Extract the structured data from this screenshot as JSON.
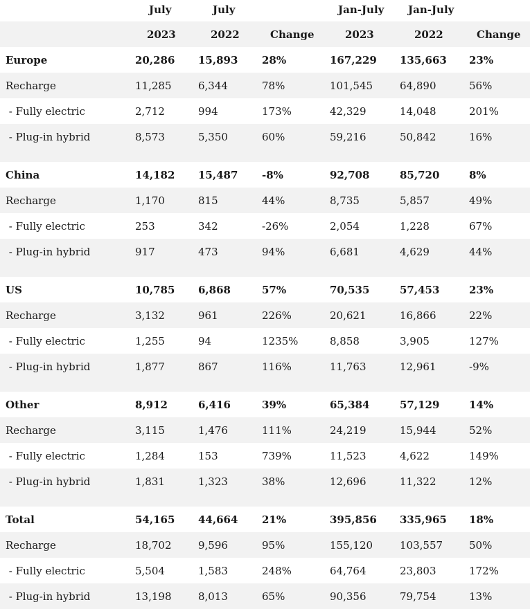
{
  "header": {
    "row1": [
      "July",
      "July",
      "",
      "Jan-July",
      "Jan-July",
      ""
    ],
    "row2": [
      "2023",
      "2022",
      "Change",
      "2023",
      "2022",
      "Change"
    ]
  },
  "sections": [
    {
      "region": [
        "Europe",
        "20,286",
        "15,893",
        "28%",
        "167,229",
        "135,663",
        "23%"
      ],
      "rows": [
        [
          "Recharge",
          "11,285",
          "6,344",
          "78%",
          "101,545",
          "64,890",
          "56%"
        ],
        [
          " - Fully electric",
          "2,712",
          "994",
          "173%",
          "42,329",
          "14,048",
          "201%"
        ],
        [
          " - Plug-in hybrid",
          "8,573",
          "5,350",
          "60%",
          "59,216",
          "50,842",
          "16%"
        ]
      ]
    },
    {
      "region": [
        "China",
        "14,182",
        "15,487",
        "-8%",
        "92,708",
        "85,720",
        "8%"
      ],
      "rows": [
        [
          "Recharge",
          "1,170",
          "815",
          "44%",
          "8,735",
          "5,857",
          "49%"
        ],
        [
          " - Fully electric",
          "253",
          "342",
          "-26%",
          "2,054",
          "1,228",
          "67%"
        ],
        [
          " - Plug-in hybrid",
          "917",
          "473",
          "94%",
          "6,681",
          "4,629",
          "44%"
        ]
      ]
    },
    {
      "region": [
        "US",
        "10,785",
        "6,868",
        "57%",
        "70,535",
        "57,453",
        "23%"
      ],
      "rows": [
        [
          "Recharge",
          "3,132",
          "961",
          "226%",
          "20,621",
          "16,866",
          "22%"
        ],
        [
          " - Fully electric",
          "1,255",
          "94",
          "1235%",
          "8,858",
          "3,905",
          "127%"
        ],
        [
          " - Plug-in hybrid",
          "1,877",
          "867",
          "116%",
          "11,763",
          "12,961",
          "-9%"
        ]
      ]
    },
    {
      "region": [
        "Other",
        "8,912",
        "6,416",
        "39%",
        "65,384",
        "57,129",
        "14%"
      ],
      "rows": [
        [
          "Recharge",
          "3,115",
          "1,476",
          "111%",
          "24,219",
          "15,944",
          "52%"
        ],
        [
          " - Fully electric",
          "1,284",
          "153",
          "739%",
          "11,523",
          "4,622",
          "149%"
        ],
        [
          " - Plug-in hybrid",
          "1,831",
          "1,323",
          "38%",
          "12,696",
          "11,322",
          "12%"
        ]
      ]
    },
    {
      "region": [
        "Total",
        "54,165",
        "44,664",
        "21%",
        "395,856",
        "335,965",
        "18%"
      ],
      "rows": [
        [
          "Recharge",
          "18,702",
          "9,596",
          "95%",
          "155,120",
          "103,557",
          "50%"
        ],
        [
          " - Fully electric",
          "5,504",
          "1,583",
          "248%",
          "64,764",
          "23,803",
          "172%"
        ],
        [
          " - Plug-in hybrid",
          "13,198",
          "8,013",
          "65%",
          "90,356",
          "79,754",
          "13%"
        ]
      ]
    }
  ]
}
